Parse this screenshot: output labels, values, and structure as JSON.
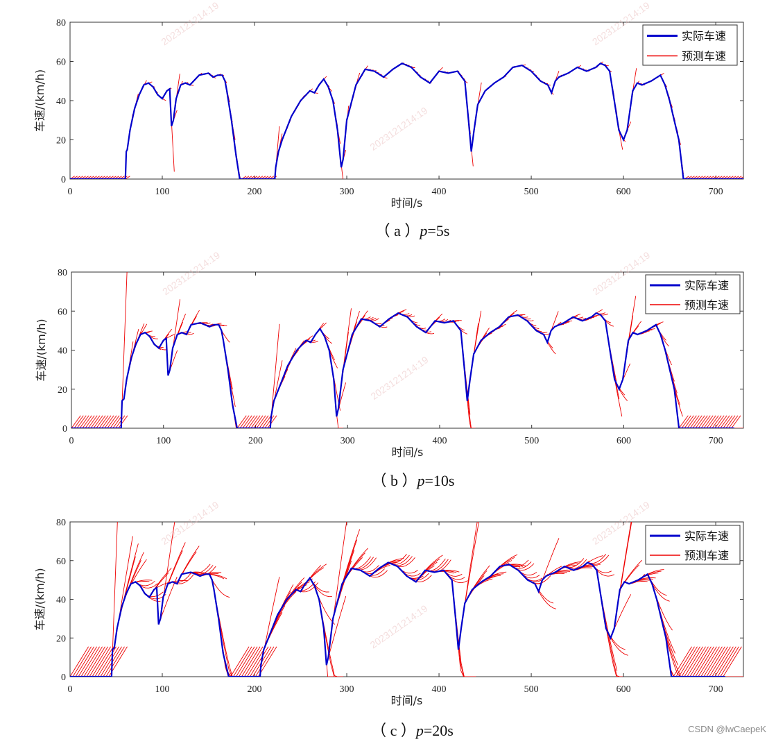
{
  "watermark": "2023121214:19",
  "credit": "CSDN @lwCaepeK",
  "chart_data": [
    {
      "type": "line",
      "caption": {
        "prefix": "（ a ）",
        "param": "p",
        "rest": "=5s"
      },
      "xlabel": "时间/s",
      "ylabel": "车速/(km/h)",
      "xlim": [
        0,
        730
      ],
      "ylim": [
        0,
        80
      ],
      "xticks": [
        0,
        100,
        200,
        300,
        400,
        500,
        600,
        700
      ],
      "yticks": [
        0,
        20,
        40,
        60,
        80
      ],
      "horizon": 5,
      "zero_level": 1.5,
      "stops": [
        [
          0,
          61
        ],
        [
          184,
          222
        ],
        [
          665,
          730
        ]
      ],
      "legend": [
        "实际车速",
        "预测车速"
      ],
      "series": [
        {
          "name": "实际车速",
          "color": "#0000cc",
          "x": [
            0,
            60,
            61,
            62,
            65,
            70,
            75,
            80,
            85,
            90,
            95,
            100,
            105,
            108,
            110,
            112,
            115,
            120,
            125,
            130,
            140,
            150,
            155,
            160,
            165,
            168,
            170,
            175,
            180,
            184,
            190,
            200,
            210,
            222,
            223,
            226,
            230,
            240,
            250,
            260,
            265,
            270,
            275,
            280,
            285,
            290,
            294,
            296,
            300,
            310,
            320,
            330,
            340,
            350,
            360,
            370,
            380,
            390,
            400,
            410,
            420,
            428,
            432,
            435,
            438,
            442,
            450,
            460,
            470,
            480,
            490,
            500,
            510,
            518,
            522,
            526,
            530,
            540,
            550,
            560,
            570,
            575,
            580,
            585,
            590,
            595,
            600,
            604,
            607,
            610,
            615,
            620,
            630,
            640,
            645,
            650,
            655,
            660,
            665,
            670,
            700,
            730
          ],
          "y": [
            0,
            0,
            14,
            15,
            25,
            36,
            43,
            48,
            49,
            47,
            43,
            41,
            45,
            46,
            27,
            30,
            41,
            48,
            49,
            48,
            53,
            54,
            52,
            53,
            53,
            50,
            45,
            30,
            12,
            0,
            0,
            0,
            0,
            0,
            6,
            14,
            20,
            32,
            40,
            45,
            44,
            48,
            51,
            47,
            40,
            25,
            6,
            10,
            30,
            48,
            56,
            55,
            52,
            56,
            59,
            57,
            52,
            49,
            55,
            54,
            55,
            50,
            30,
            14,
            25,
            38,
            45,
            49,
            52,
            57,
            58,
            55,
            50,
            48,
            44,
            50,
            52,
            54,
            57,
            55,
            57,
            59,
            58,
            55,
            40,
            25,
            20,
            25,
            35,
            45,
            49,
            48,
            50,
            53,
            48,
            40,
            30,
            20,
            0,
            0,
            0,
            0
          ]
        },
        {
          "name": "预测车速",
          "color": "#ee0000"
        }
      ]
    },
    {
      "type": "line",
      "caption": {
        "prefix": "（ b ）",
        "param": "p",
        "rest": "=10s"
      },
      "xlabel": "时间/s",
      "ylabel": "车速/(km/h)",
      "xlim": [
        0,
        730
      ],
      "ylim": [
        0,
        80
      ],
      "xticks": [
        0,
        100,
        200,
        300,
        400,
        500,
        600,
        700
      ],
      "yticks": [
        0,
        20,
        40,
        60,
        80
      ],
      "horizon": 10,
      "zero_level": 6.5,
      "stops": [
        [
          0,
          54
        ],
        [
          180,
          216
        ],
        [
          660,
          720
        ]
      ],
      "legend": [
        "实际车速",
        "预测车速"
      ],
      "series": [
        {
          "name": "实际车速",
          "color": "#0000cc",
          "x": [
            0,
            54,
            55,
            57,
            60,
            65,
            70,
            75,
            80,
            85,
            90,
            95,
            100,
            103,
            105,
            107,
            110,
            115,
            120,
            125,
            130,
            140,
            150,
            155,
            160,
            163,
            165,
            170,
            175,
            180,
            190,
            200,
            210,
            216,
            217,
            220,
            225,
            235,
            245,
            255,
            260,
            265,
            270,
            275,
            280,
            285,
            288,
            290,
            295,
            305,
            315,
            325,
            335,
            345,
            355,
            365,
            375,
            385,
            395,
            405,
            415,
            423,
            427,
            430,
            433,
            437,
            445,
            455,
            465,
            475,
            485,
            495,
            505,
            513,
            517,
            521,
            525,
            535,
            545,
            555,
            565,
            570,
            575,
            580,
            585,
            590,
            595,
            599,
            602,
            605,
            610,
            615,
            625,
            635,
            640,
            645,
            650,
            655,
            660,
            665,
            700,
            720
          ],
          "y": [
            0,
            0,
            14,
            15,
            25,
            36,
            43,
            48,
            49,
            47,
            43,
            41,
            45,
            46,
            27,
            30,
            41,
            48,
            49,
            48,
            53,
            54,
            52,
            53,
            53,
            50,
            45,
            30,
            12,
            0,
            0,
            0,
            0,
            0,
            6,
            14,
            20,
            32,
            40,
            45,
            44,
            48,
            51,
            47,
            40,
            25,
            6,
            10,
            30,
            48,
            56,
            55,
            52,
            56,
            59,
            57,
            52,
            49,
            55,
            54,
            55,
            50,
            30,
            14,
            25,
            38,
            45,
            49,
            52,
            57,
            58,
            55,
            50,
            48,
            44,
            50,
            52,
            54,
            57,
            55,
            57,
            59,
            58,
            55,
            40,
            25,
            20,
            25,
            35,
            45,
            49,
            48,
            50,
            53,
            48,
            40,
            30,
            20,
            0,
            0,
            0,
            0
          ]
        },
        {
          "name": "预测车速",
          "color": "#ee0000"
        }
      ]
    },
    {
      "type": "line",
      "caption": {
        "prefix": "（ c ）",
        "param": "p",
        "rest": "=20s"
      },
      "xlabel": "时间/s",
      "ylabel": "车速/(km/h)",
      "xlim": [
        0,
        730
      ],
      "ylim": [
        0,
        80
      ],
      "xticks": [
        0,
        100,
        200,
        300,
        400,
        500,
        600,
        700
      ],
      "yticks": [
        0,
        20,
        40,
        60,
        80
      ],
      "horizon": 20,
      "zero_level": 15.5,
      "stops": [
        [
          0,
          45
        ],
        [
          172,
          206
        ],
        [
          652,
          710
        ]
      ],
      "legend": [
        "实际车速",
        "预测车速"
      ],
      "series": [
        {
          "name": "实际车速",
          "color": "#0000cc",
          "x": [
            0,
            45,
            46,
            48,
            51,
            56,
            61,
            66,
            71,
            76,
            81,
            86,
            91,
            94,
            96,
            98,
            101,
            106,
            111,
            116,
            121,
            131,
            141,
            146,
            151,
            154,
            156,
            161,
            166,
            172,
            182,
            192,
            200,
            206,
            207,
            210,
            215,
            225,
            235,
            245,
            250,
            255,
            260,
            265,
            270,
            275,
            278,
            280,
            285,
            295,
            305,
            315,
            325,
            335,
            345,
            355,
            365,
            375,
            385,
            395,
            405,
            414,
            418,
            421,
            424,
            428,
            436,
            446,
            456,
            466,
            476,
            486,
            496,
            504,
            508,
            512,
            516,
            526,
            536,
            546,
            556,
            561,
            566,
            571,
            576,
            581,
            586,
            590,
            593,
            596,
            601,
            606,
            616,
            626,
            631,
            636,
            641,
            646,
            652,
            657,
            690,
            710
          ],
          "y": [
            0,
            0,
            14,
            15,
            25,
            36,
            43,
            48,
            49,
            47,
            43,
            41,
            45,
            46,
            27,
            30,
            41,
            48,
            49,
            48,
            53,
            54,
            52,
            53,
            53,
            50,
            45,
            30,
            12,
            0,
            0,
            0,
            0,
            0,
            6,
            14,
            20,
            32,
            40,
            45,
            44,
            48,
            51,
            47,
            40,
            25,
            6,
            10,
            30,
            48,
            56,
            55,
            52,
            56,
            59,
            57,
            52,
            49,
            55,
            54,
            55,
            50,
            30,
            14,
            25,
            38,
            45,
            49,
            52,
            57,
            58,
            55,
            50,
            48,
            44,
            50,
            52,
            54,
            57,
            55,
            57,
            59,
            58,
            55,
            40,
            25,
            20,
            25,
            35,
            45,
            49,
            48,
            50,
            53,
            48,
            40,
            30,
            20,
            0,
            0,
            0,
            0
          ]
        },
        {
          "name": "预测车速",
          "color": "#ee0000"
        }
      ]
    }
  ]
}
